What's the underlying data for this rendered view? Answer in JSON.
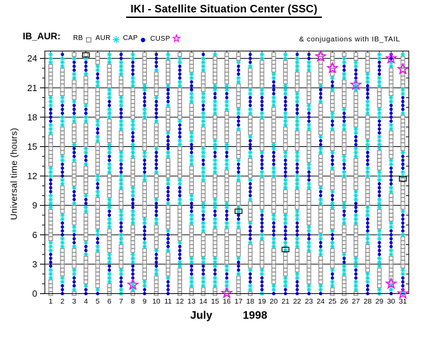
{
  "title": "IKI - Satellite Situation Center (SSC)",
  "legend": {
    "dataset_label": "IB_AUR:",
    "items": [
      {
        "label": "RB",
        "marker": "open-square",
        "color": "#8c8c8c"
      },
      {
        "label": "AUR",
        "marker": "asterisk",
        "color": "#00d9d9"
      },
      {
        "label": "CAP",
        "marker": "filled-circle",
        "color": "#0000d6"
      },
      {
        "label": "CUSP",
        "marker": "open-star",
        "color": "#f000f0"
      }
    ],
    "conjugation_note": "& conjugations with IB_TAIL"
  },
  "axes": {
    "y_label": "Universal time (hours)",
    "y_major_ticks": [
      0,
      3,
      6,
      9,
      12,
      15,
      18,
      21,
      24
    ],
    "y_minor_step_hours": 1,
    "y_range": [
      0,
      24.75
    ],
    "x_day_labels": [
      "1",
      "2",
      "3",
      "4",
      "5",
      "6",
      "7",
      "8",
      "9",
      "10",
      "11",
      "12",
      "13",
      "14",
      "15",
      "16",
      "17",
      "18",
      "19",
      "20",
      "21",
      "22",
      "23",
      "24",
      "25",
      "26",
      "27",
      "28",
      "29",
      "30",
      "31"
    ],
    "month_label": "July",
    "year_label": "1998"
  },
  "chart_data": {
    "type": "scatter",
    "title": "IKI - Satellite Situation Center (SSC)",
    "xlabel": "July 1998 (day of month)",
    "ylabel": "Universal time (hours)",
    "grid": "horizontal lines at every 3 hours, vertical line per day column",
    "legend_position": "top, above plot frame",
    "days": 31,
    "hours_range": [
      0,
      24.6
    ],
    "marker_step_hours": 0.4,
    "orbit_pattern": {
      "description": "Each day column is a dense ladder of region markers for satellite IB_AUR; regions repeat each orbit cycle and the phase drifts day by day.",
      "period_hours": 5.8,
      "phase_shift_per_day_hours": 2.1,
      "segments": [
        {
          "region": "RB",
          "marker": "open-square",
          "duration_hours": 2.7
        },
        {
          "region": "AUR",
          "marker": "asterisk",
          "duration_hours": 1.0
        },
        {
          "region": "CAP",
          "marker": "filled-circle",
          "duration_hours": 1.3
        },
        {
          "region": "AUR",
          "marker": "asterisk",
          "duration_hours": 0.8
        }
      ]
    },
    "cusp_events": [
      {
        "day": 24,
        "hour": 24.2
      },
      {
        "day": 25,
        "hour": 23.0
      },
      {
        "day": 27,
        "hour": 21.3
      },
      {
        "day": 30,
        "hour": 24.0
      },
      {
        "day": 31,
        "hour": 22.9
      },
      {
        "day": 8,
        "hour": 0.9
      },
      {
        "day": 16,
        "hour": 0.05
      },
      {
        "day": 30,
        "hour": 1.0
      },
      {
        "day": 31,
        "hour": 0.0
      }
    ],
    "tail_conjugation_events": [
      {
        "day": 4,
        "hour": 24.35
      },
      {
        "day": 17,
        "hour": 8.4
      },
      {
        "day": 21,
        "hour": 4.5
      },
      {
        "day": 31,
        "hour": 11.7
      }
    ],
    "colors": {
      "RB": "#8c8c8c",
      "AUR": "#00d9d9",
      "CAP": "#0000d6",
      "CUSP": "#f000f0",
      "TAIL": "#000000",
      "grid": "#000000"
    }
  }
}
